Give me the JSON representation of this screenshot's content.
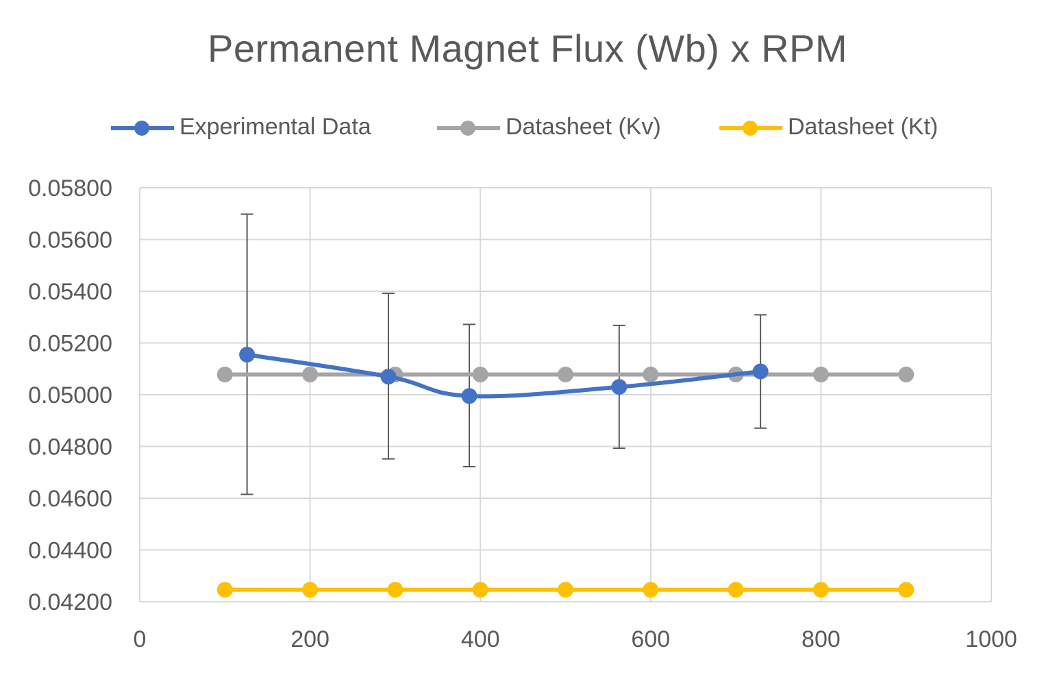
{
  "chart_data": {
    "type": "line",
    "title": "Permanent Magnet Flux (Wb) x RPM",
    "xlabel": "",
    "ylabel": "",
    "xlim": [
      0,
      1000
    ],
    "ylim": [
      0.042,
      0.058
    ],
    "x_ticks": [
      "0",
      "200",
      "400",
      "600",
      "800",
      "1000"
    ],
    "x_tick_values": [
      0,
      200,
      400,
      600,
      800,
      1000
    ],
    "y_ticks": [
      "0.04200",
      "0.04400",
      "0.04600",
      "0.04800",
      "0.05000",
      "0.05200",
      "0.05400",
      "0.05600",
      "0.05800"
    ],
    "y_tick_values": [
      0.042,
      0.044,
      0.046,
      0.048,
      0.05,
      0.052,
      0.054,
      0.056,
      0.058
    ],
    "grid": true,
    "legend_position": "top",
    "series": [
      {
        "name": "Experimental Data",
        "color": "#4472C4",
        "smooth": true,
        "x": [
          126,
          292,
          387,
          563,
          729
        ],
        "y": [
          0.05155,
          0.0507,
          0.04995,
          0.0503,
          0.0509
        ],
        "error_low": [
          0.04615,
          0.04752,
          0.04722,
          0.04793,
          0.04871
        ],
        "error_high": [
          0.05698,
          0.05392,
          0.05272,
          0.05268,
          0.05309
        ]
      },
      {
        "name": "Datasheet (Kv)",
        "color": "#A5A5A5",
        "smooth": false,
        "x": [
          100,
          200,
          300,
          400,
          500,
          600,
          700,
          800,
          900
        ],
        "y": [
          0.05078,
          0.05078,
          0.05078,
          0.05078,
          0.05078,
          0.05078,
          0.05078,
          0.05078,
          0.05078
        ]
      },
      {
        "name": "Datasheet (Kt)",
        "color": "#FFC000",
        "smooth": false,
        "x": [
          100,
          200,
          300,
          400,
          500,
          600,
          700,
          800,
          900
        ],
        "y": [
          0.04246,
          0.04246,
          0.04246,
          0.04246,
          0.04246,
          0.04246,
          0.04246,
          0.04246,
          0.04246
        ]
      }
    ]
  },
  "legend": {
    "items": [
      {
        "label": "Experimental Data",
        "color": "#4472C4"
      },
      {
        "label": "Datasheet (Kv)",
        "color": "#A5A5A5"
      },
      {
        "label": "Datasheet (Kt)",
        "color": "#FFC000"
      }
    ]
  },
  "colors": {
    "grid": "#D9D9D9",
    "text": "#595959",
    "error_bar": "#595959"
  }
}
